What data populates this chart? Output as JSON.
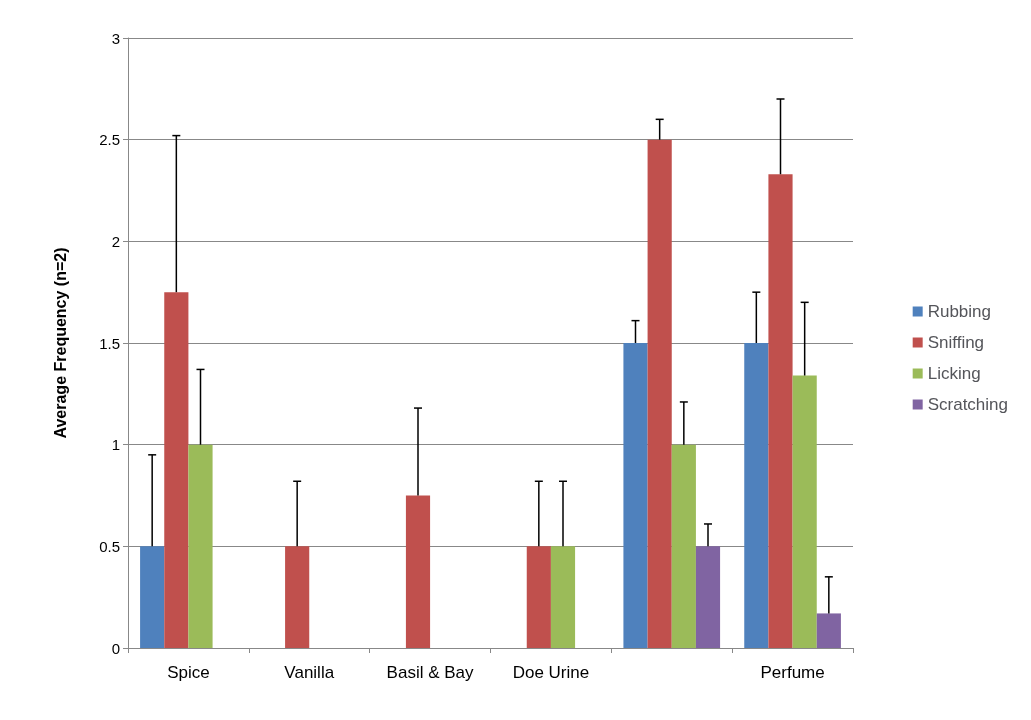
{
  "chart_data": {
    "type": "bar",
    "ylabel": "Average Frequency (n=2)",
    "categories": [
      "Spice",
      "Vanilla",
      "Basil & Bay",
      "Doe Urine",
      null,
      "Perfume"
    ],
    "series": [
      {
        "name": "Rubbing",
        "color": "#4f81bd",
        "values": [
          0.5,
          0,
          0,
          0,
          1.5,
          1.5
        ],
        "errors": [
          [
            0.5,
            0.95
          ],
          null,
          null,
          null,
          [
            1.5,
            1.61
          ],
          [
            1.5,
            1.75
          ]
        ]
      },
      {
        "name": "Sniffing",
        "color": "#c0504d",
        "values": [
          1.75,
          0.5,
          0.75,
          0.5,
          2.5,
          2.33
        ],
        "errors": [
          [
            1.75,
            2.52
          ],
          [
            0.5,
            0.82
          ],
          [
            0.75,
            1.18
          ],
          [
            0.5,
            0.82
          ],
          [
            2.5,
            2.6
          ],
          [
            2.33,
            2.7
          ]
        ]
      },
      {
        "name": "Licking",
        "color": "#9bbb59",
        "values": [
          1,
          0,
          0,
          0.5,
          1,
          1.34
        ],
        "errors": [
          [
            1,
            1.37
          ],
          null,
          null,
          [
            0.5,
            0.82
          ],
          [
            1,
            1.21
          ],
          [
            1.34,
            1.7
          ]
        ]
      },
      {
        "name": "Scratching",
        "color": "#8064a2",
        "values": [
          0,
          0,
          0,
          0,
          0.5,
          0.17
        ],
        "errors": [
          null,
          null,
          null,
          null,
          [
            0.5,
            0.61
          ],
          [
            0.17,
            0.35
          ]
        ]
      }
    ],
    "ylim": [
      0,
      3
    ],
    "yticks": [
      0,
      0.5,
      1,
      1.5,
      2,
      2.5,
      3
    ],
    "grid": "y",
    "legend": "right"
  }
}
